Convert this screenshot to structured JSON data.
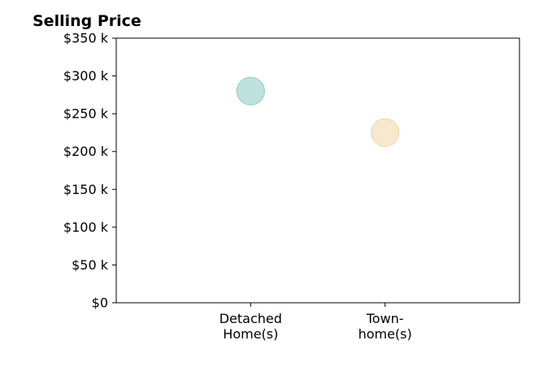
{
  "chart_data": {
    "type": "scatter",
    "title": "Selling Price",
    "categories": [
      "Detached\nHome(s)",
      "Town-\nhome(s)"
    ],
    "values": [
      280000,
      225000
    ],
    "point_colors": [
      "#a8d8d3",
      "#f5e2bd"
    ],
    "point_stroke_colors": [
      "#8fcac3",
      "#ecd4a7"
    ],
    "ylim": [
      0,
      350000
    ],
    "yticks": [
      0,
      50000,
      100000,
      150000,
      200000,
      250000,
      300000,
      350000
    ],
    "ytick_labels": [
      "$0",
      "$50 k",
      "$100 k",
      "$150 k",
      "$200 k",
      "$250 k",
      "$300 k",
      "$350 k"
    ],
    "xlim": [
      0,
      3
    ],
    "grid": false,
    "xlabel": "",
    "ylabel": ""
  }
}
